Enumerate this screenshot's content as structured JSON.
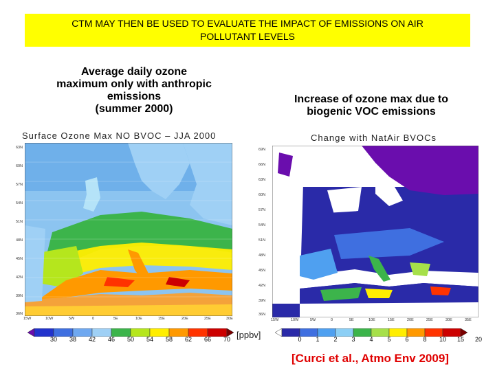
{
  "banner": {
    "line1": "CTM MAY THEN BE USED TO EVALUATE THE IMPACT OF EMISSIONS ON AIR",
    "line2": "POLLUTANT LEVELS",
    "color": "#ffff00"
  },
  "left_panel": {
    "subtitle_lines": [
      "Average daily ozone",
      "maximum only with anthropic",
      "emissions",
      "(summer 2000)"
    ],
    "map_title": "Surface Ozone Max NO BVOC – JJA 2000",
    "lat_labels": [
      "63N",
      "60N",
      "57N",
      "54N",
      "51N",
      "48N",
      "45N",
      "42N",
      "39N",
      "36N"
    ],
    "lon_labels": [
      "15W",
      "10W",
      "5W",
      "0",
      "5E",
      "10E",
      "15E",
      "20E",
      "25E",
      "30E"
    ],
    "colorbar_labels": [
      "30",
      "38",
      "42",
      "46",
      "50",
      "54",
      "58",
      "62",
      "66",
      "70"
    ],
    "colorbar_colors": [
      "#6a0dad",
      "#2233cc",
      "#3f6fe0",
      "#6fa8f0",
      "#9fd0f5",
      "#3cb44b",
      "#b5e61d",
      "#ffee00",
      "#ff9900",
      "#ff3300",
      "#cc0000",
      "#7a0000"
    ],
    "unit": "[ppbv]"
  },
  "right_panel": {
    "subtitle_lines": [
      "Increase of ozone max due to",
      "biogenic VOC emissions"
    ],
    "map_title": "Change with NatAir BVOCs",
    "lat_labels": [
      "69N",
      "66N",
      "63N",
      "60N",
      "57N",
      "54N",
      "51N",
      "48N",
      "45N",
      "42N",
      "39N",
      "36N"
    ],
    "lon_labels": [
      "15W",
      "10W",
      "5W",
      "0",
      "5E",
      "10E",
      "15E",
      "20E",
      "25E",
      "30E",
      "35E"
    ],
    "colorbar_labels": [
      "0",
      "1",
      "2",
      "3",
      "4",
      "5",
      "6",
      "8",
      "10",
      "15",
      "20"
    ],
    "colorbar_colors": [
      "#ffffff",
      "#2a2aa8",
      "#3f6fe0",
      "#4fa0f0",
      "#8ccff5",
      "#3cb44b",
      "#a6e04a",
      "#ffee00",
      "#ff9900",
      "#ff3300",
      "#cc0000",
      "#7a0000"
    ]
  },
  "citation": "[Curci et al., Atmo Env 2009]",
  "citation_color": "#e00000"
}
